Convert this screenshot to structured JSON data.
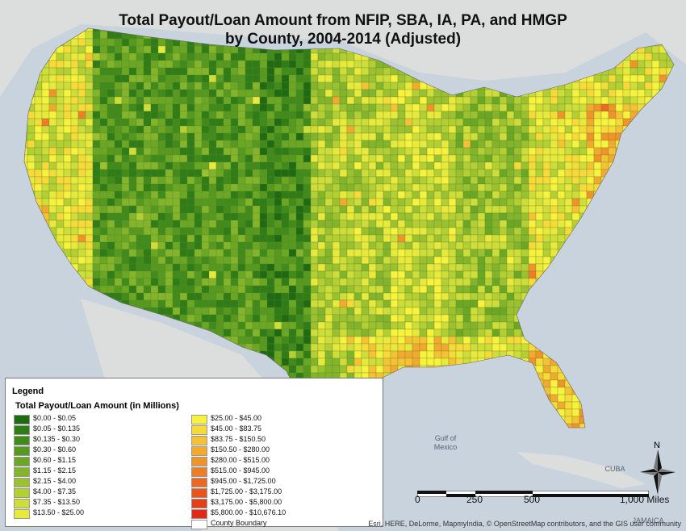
{
  "title_line1": "Total Payout/Loan Amount from NFIP, SBA, IA, PA, and HMGP",
  "title_line2": "by County, 2004-2014 (Adjusted)",
  "legend": {
    "heading": "Legend",
    "subheading": "Total Payout/Loan Amount (in Millions)",
    "classes": [
      {
        "label": "$0.00 - $0.05",
        "color": "#1f6b12"
      },
      {
        "label": "$0.05 - $0.135",
        "color": "#2e7d16"
      },
      {
        "label": "$0.135 - $0.30",
        "color": "#3f8c1b"
      },
      {
        "label": "$0.30 - $0.60",
        "color": "#559a1f"
      },
      {
        "label": "$0.60 - $1.15",
        "color": "#6aa824"
      },
      {
        "label": "$1.15 - $2.15",
        "color": "#82b52a"
      },
      {
        "label": "$2.15 - $4.00",
        "color": "#99c22e"
      },
      {
        "label": "$4.00 - $7.35",
        "color": "#b3d033"
      },
      {
        "label": "$7.35 - $13.50",
        "color": "#cede38"
      },
      {
        "label": "$13.50 - $25.00",
        "color": "#e8ea3b"
      },
      {
        "label": "$25.00 - $45.00",
        "color": "#f7f23c"
      },
      {
        "label": "$45.00 - $83.75",
        "color": "#f6da37"
      },
      {
        "label": "$83.75 - $150.50",
        "color": "#f4c233"
      },
      {
        "label": "$150.50 - $280.00",
        "color": "#f2aa2e"
      },
      {
        "label": "$280.00 - $515.00",
        "color": "#f0942a"
      },
      {
        "label": "$515.00 - $945.00",
        "color": "#ee7e26"
      },
      {
        "label": "$945.00 - $1,725.00",
        "color": "#ec6922"
      },
      {
        "label": "$1,725.00 - $3,175.00",
        "color": "#e9541d"
      },
      {
        "label": "$3,175.00 - $5,800.00",
        "color": "#e63f18"
      },
      {
        "label": "$5,800.00 - $10,676.10",
        "color": "#e22913"
      }
    ],
    "boundary_label": "County Boundary"
  },
  "geo_labels": {
    "gulf1": "Gulf of",
    "gulf2": "Mexico",
    "cuba": "CUBA",
    "jamaica": "JAMAICA"
  },
  "north_label": "N",
  "scale": {
    "labels": [
      "0",
      "250",
      "500",
      "1,000 Miles"
    ]
  },
  "credits": "Esri, HERE, DeLorme, MapmyIndia, © OpenStreetMap contributors, and the GIS user community"
}
